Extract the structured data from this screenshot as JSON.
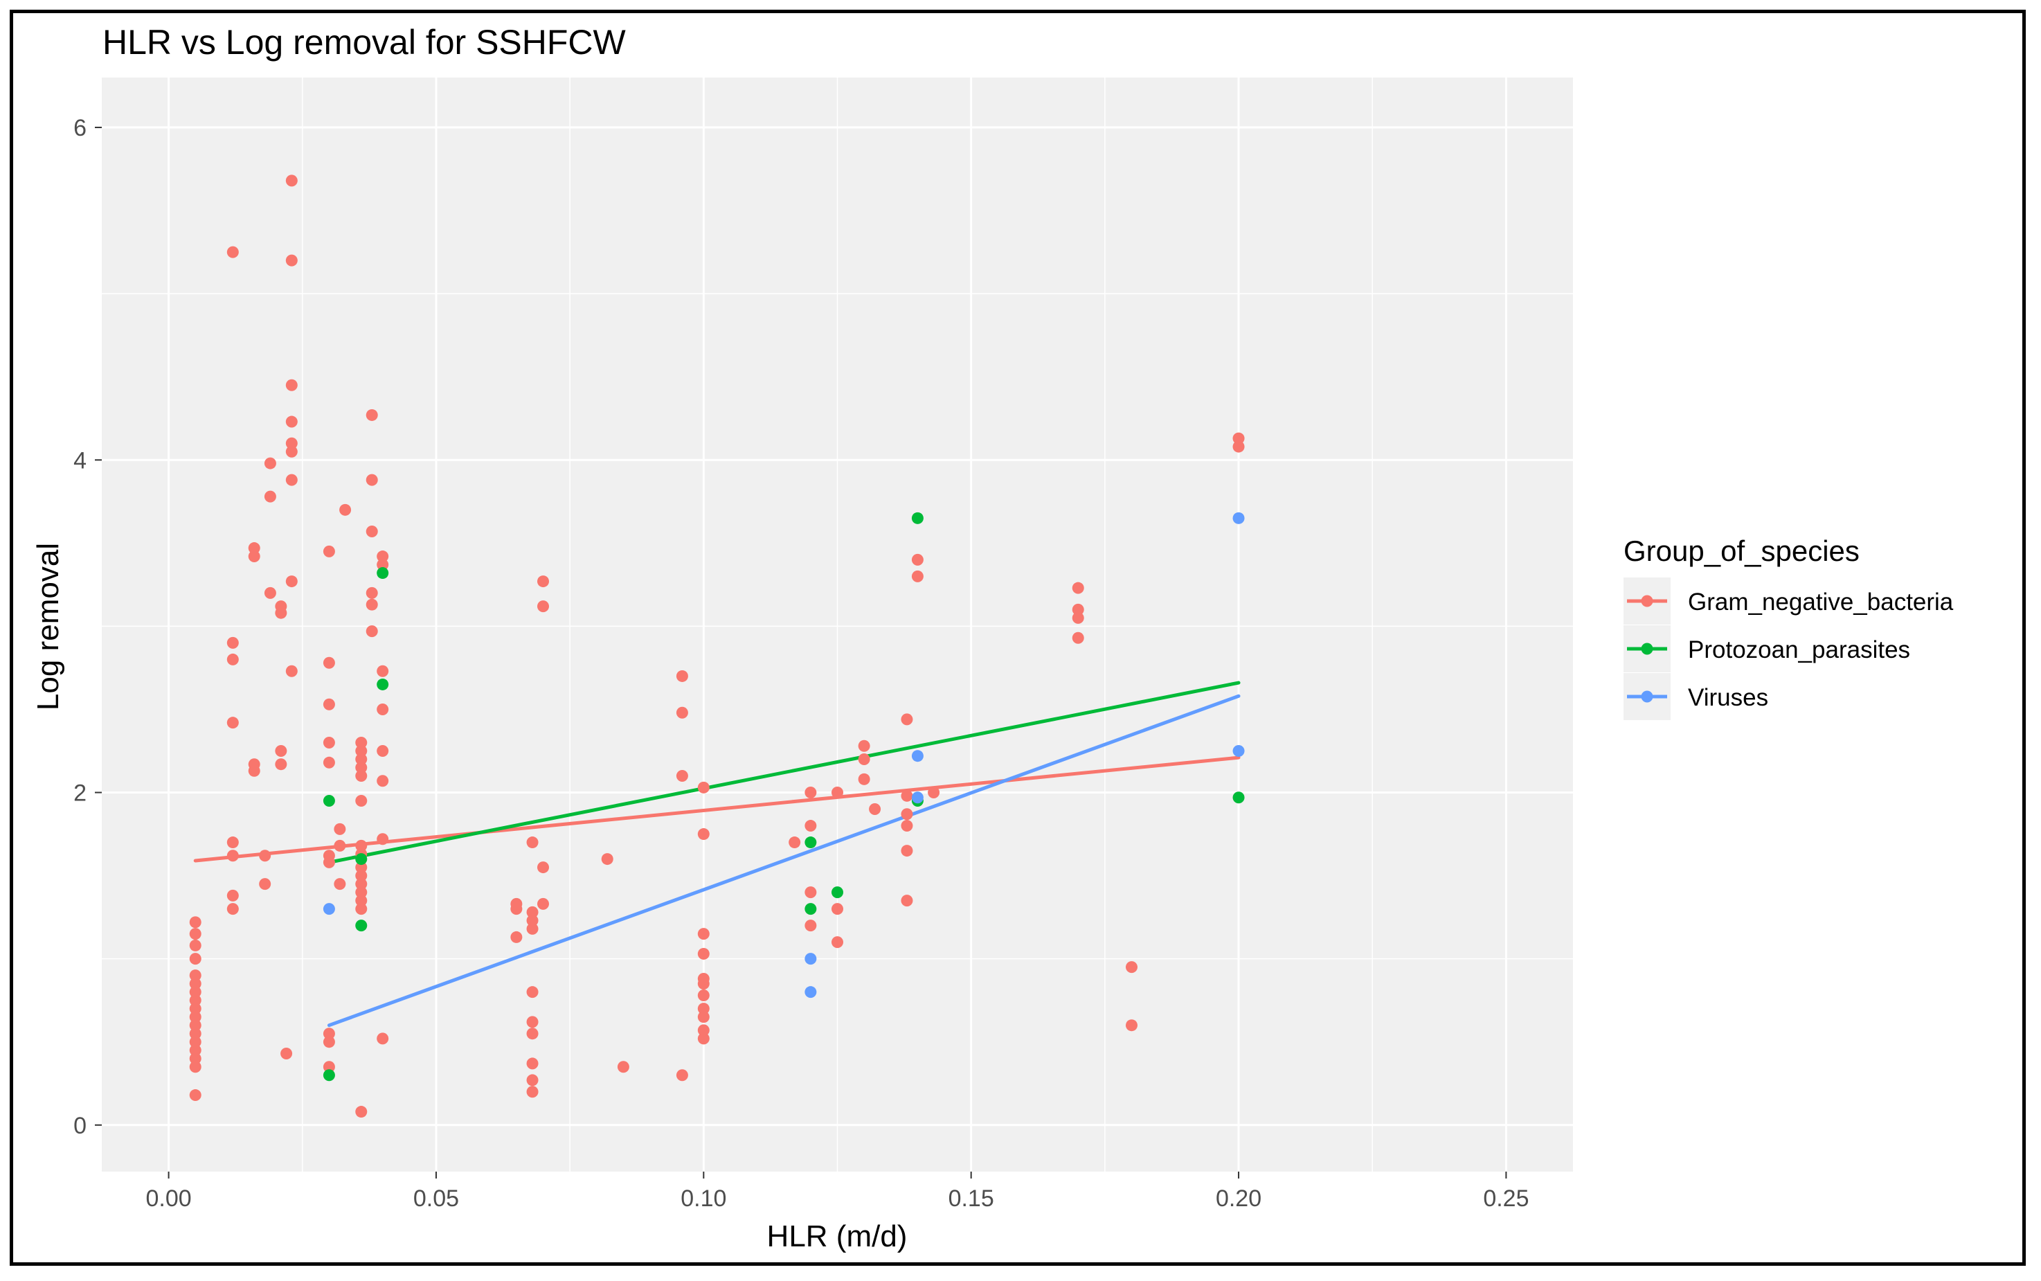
{
  "chart_data": {
    "type": "scatter",
    "title": "HLR vs Log removal for SSHFCW",
    "xlabel": "HLR (m/d)",
    "ylabel": "Log removal",
    "xlim": [
      -0.0125,
      0.2625
    ],
    "ylim": [
      -0.28,
      6.3
    ],
    "xticks": [
      0.0,
      0.05,
      0.1,
      0.15,
      0.2,
      0.25
    ],
    "xtick_labels": [
      "0.00",
      "0.05",
      "0.10",
      "0.15",
      "0.20",
      "0.25"
    ],
    "yticks": [
      0,
      2,
      4,
      6
    ],
    "ytick_labels": [
      "0",
      "2",
      "4",
      "6"
    ],
    "grid": true,
    "legend_position": "right",
    "legend_title": "Group_of_species",
    "series": [
      {
        "name": "Gram_negative_bacteria",
        "color": "#F8766D",
        "points": [
          [
            0.005,
            0.18
          ],
          [
            0.005,
            0.35
          ],
          [
            0.005,
            0.4
          ],
          [
            0.005,
            0.45
          ],
          [
            0.005,
            0.5
          ],
          [
            0.005,
            0.55
          ],
          [
            0.005,
            0.6
          ],
          [
            0.005,
            0.65
          ],
          [
            0.005,
            0.7
          ],
          [
            0.005,
            0.75
          ],
          [
            0.005,
            0.8
          ],
          [
            0.005,
            0.85
          ],
          [
            0.005,
            0.9
          ],
          [
            0.005,
            1.0
          ],
          [
            0.005,
            1.08
          ],
          [
            0.005,
            1.15
          ],
          [
            0.005,
            1.22
          ],
          [
            0.012,
            1.3
          ],
          [
            0.012,
            1.38
          ],
          [
            0.012,
            1.62
          ],
          [
            0.012,
            1.7
          ],
          [
            0.012,
            2.42
          ],
          [
            0.012,
            2.8
          ],
          [
            0.012,
            2.9
          ],
          [
            0.012,
            5.25
          ],
          [
            0.016,
            2.13
          ],
          [
            0.016,
            2.17
          ],
          [
            0.016,
            3.42
          ],
          [
            0.016,
            3.47
          ],
          [
            0.018,
            1.45
          ],
          [
            0.018,
            1.62
          ],
          [
            0.019,
            3.2
          ],
          [
            0.019,
            3.78
          ],
          [
            0.019,
            3.98
          ],
          [
            0.021,
            2.17
          ],
          [
            0.021,
            2.25
          ],
          [
            0.021,
            3.08
          ],
          [
            0.021,
            3.12
          ],
          [
            0.022,
            0.43
          ],
          [
            0.023,
            2.73
          ],
          [
            0.023,
            3.27
          ],
          [
            0.023,
            3.88
          ],
          [
            0.023,
            4.05
          ],
          [
            0.023,
            4.1
          ],
          [
            0.023,
            4.23
          ],
          [
            0.023,
            4.45
          ],
          [
            0.023,
            5.2
          ],
          [
            0.023,
            5.68
          ],
          [
            0.03,
            0.35
          ],
          [
            0.03,
            0.5
          ],
          [
            0.03,
            0.55
          ],
          [
            0.03,
            1.58
          ],
          [
            0.03,
            1.62
          ],
          [
            0.03,
            2.18
          ],
          [
            0.03,
            2.3
          ],
          [
            0.03,
            2.53
          ],
          [
            0.03,
            2.78
          ],
          [
            0.03,
            3.45
          ],
          [
            0.032,
            1.45
          ],
          [
            0.032,
            1.68
          ],
          [
            0.032,
            1.78
          ],
          [
            0.033,
            3.7
          ],
          [
            0.036,
            0.08
          ],
          [
            0.036,
            1.3
          ],
          [
            0.036,
            1.35
          ],
          [
            0.036,
            1.4
          ],
          [
            0.036,
            1.45
          ],
          [
            0.036,
            1.5
          ],
          [
            0.036,
            1.55
          ],
          [
            0.036,
            1.63
          ],
          [
            0.036,
            1.68
          ],
          [
            0.036,
            1.95
          ],
          [
            0.036,
            2.1
          ],
          [
            0.036,
            2.15
          ],
          [
            0.036,
            2.2
          ],
          [
            0.036,
            2.25
          ],
          [
            0.036,
            2.3
          ],
          [
            0.038,
            2.97
          ],
          [
            0.038,
            3.13
          ],
          [
            0.038,
            3.2
          ],
          [
            0.038,
            3.57
          ],
          [
            0.038,
            3.88
          ],
          [
            0.038,
            4.27
          ],
          [
            0.04,
            0.52
          ],
          [
            0.04,
            1.72
          ],
          [
            0.04,
            2.07
          ],
          [
            0.04,
            2.25
          ],
          [
            0.04,
            2.5
          ],
          [
            0.04,
            2.73
          ],
          [
            0.04,
            3.37
          ],
          [
            0.04,
            3.42
          ],
          [
            0.065,
            1.13
          ],
          [
            0.065,
            1.3
          ],
          [
            0.065,
            1.33
          ],
          [
            0.068,
            0.2
          ],
          [
            0.068,
            0.27
          ],
          [
            0.068,
            0.37
          ],
          [
            0.068,
            0.55
          ],
          [
            0.068,
            0.62
          ],
          [
            0.068,
            0.8
          ],
          [
            0.068,
            1.18
          ],
          [
            0.068,
            1.23
          ],
          [
            0.068,
            1.28
          ],
          [
            0.068,
            1.7
          ],
          [
            0.07,
            1.33
          ],
          [
            0.07,
            1.55
          ],
          [
            0.07,
            3.12
          ],
          [
            0.07,
            3.27
          ],
          [
            0.082,
            1.6
          ],
          [
            0.085,
            0.35
          ],
          [
            0.096,
            0.3
          ],
          [
            0.096,
            2.1
          ],
          [
            0.096,
            2.48
          ],
          [
            0.096,
            2.7
          ],
          [
            0.1,
            0.52
          ],
          [
            0.1,
            0.57
          ],
          [
            0.1,
            0.65
          ],
          [
            0.1,
            0.7
          ],
          [
            0.1,
            0.78
          ],
          [
            0.1,
            0.85
          ],
          [
            0.1,
            0.88
          ],
          [
            0.1,
            1.03
          ],
          [
            0.1,
            1.15
          ],
          [
            0.1,
            1.75
          ],
          [
            0.1,
            2.03
          ],
          [
            0.117,
            1.7
          ],
          [
            0.12,
            1.2
          ],
          [
            0.12,
            1.4
          ],
          [
            0.12,
            1.8
          ],
          [
            0.12,
            2.0
          ],
          [
            0.125,
            1.1
          ],
          [
            0.125,
            1.3
          ],
          [
            0.125,
            2.0
          ],
          [
            0.13,
            2.08
          ],
          [
            0.13,
            2.2
          ],
          [
            0.13,
            2.28
          ],
          [
            0.132,
            1.9
          ],
          [
            0.138,
            1.35
          ],
          [
            0.138,
            1.65
          ],
          [
            0.138,
            1.8
          ],
          [
            0.138,
            1.87
          ],
          [
            0.138,
            1.98
          ],
          [
            0.138,
            2.44
          ],
          [
            0.14,
            3.3
          ],
          [
            0.14,
            3.4
          ],
          [
            0.143,
            2.0
          ],
          [
            0.17,
            2.93
          ],
          [
            0.17,
            3.05
          ],
          [
            0.17,
            3.1
          ],
          [
            0.17,
            3.23
          ],
          [
            0.18,
            0.6
          ],
          [
            0.18,
            0.95
          ],
          [
            0.2,
            4.08
          ],
          [
            0.2,
            4.13
          ]
        ],
        "fit": [
          [
            0.005,
            1.59
          ],
          [
            0.2,
            2.21
          ]
        ]
      },
      {
        "name": "Protozoan_parasites",
        "color": "#00BA38",
        "points": [
          [
            0.03,
            0.3
          ],
          [
            0.03,
            1.95
          ],
          [
            0.036,
            1.2
          ],
          [
            0.036,
            1.6
          ],
          [
            0.04,
            2.65
          ],
          [
            0.04,
            3.32
          ],
          [
            0.12,
            1.3
          ],
          [
            0.12,
            1.7
          ],
          [
            0.125,
            1.4
          ],
          [
            0.14,
            1.95
          ],
          [
            0.14,
            3.65
          ],
          [
            0.2,
            1.97
          ]
        ],
        "fit": [
          [
            0.03,
            1.58
          ],
          [
            0.2,
            2.66
          ]
        ]
      },
      {
        "name": "Viruses",
        "color": "#619CFF",
        "points": [
          [
            0.03,
            1.3
          ],
          [
            0.12,
            0.8
          ],
          [
            0.12,
            1.0
          ],
          [
            0.14,
            2.22
          ],
          [
            0.14,
            1.97
          ],
          [
            0.2,
            2.25
          ],
          [
            0.2,
            3.65
          ]
        ],
        "fit": [
          [
            0.03,
            0.6
          ],
          [
            0.2,
            2.58
          ]
        ]
      }
    ]
  }
}
